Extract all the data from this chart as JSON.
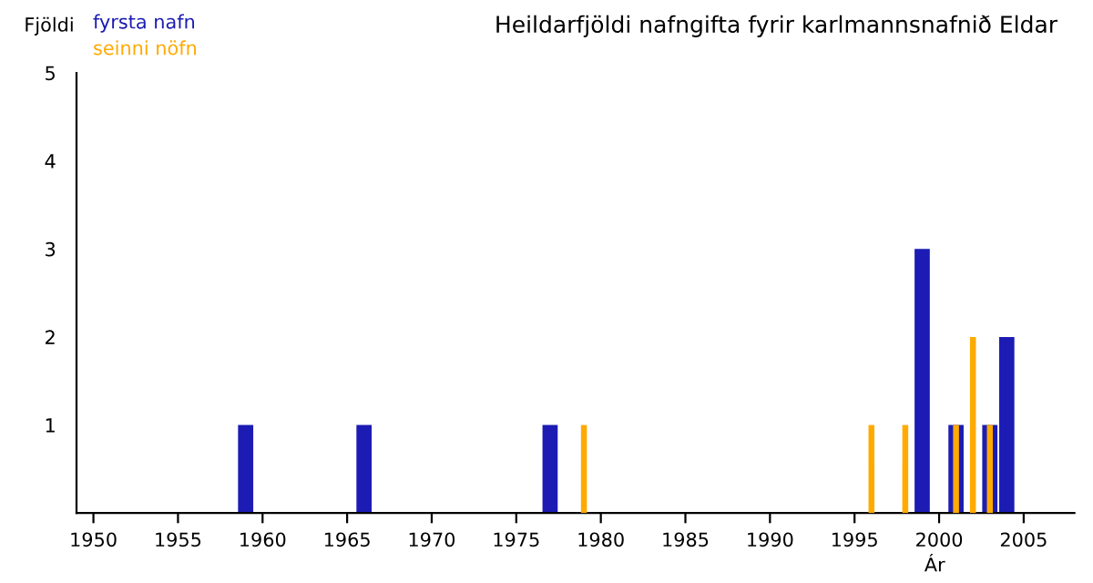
{
  "chart_data": {
    "type": "bar",
    "title": "Heildarfjöldi nafngifta fyrir karlmannsnafnið Eldar",
    "xlabel": "Ár",
    "ylabel": "Fjöldi",
    "series": [
      {
        "name": "fyrsta nafn",
        "color": "#1c1cb4",
        "x": [
          1959,
          1966,
          1977,
          1999,
          2001,
          2003,
          2004
        ],
        "values": [
          1,
          1,
          1,
          3,
          1,
          1,
          2
        ]
      },
      {
        "name": "seinni nöfn",
        "color": "#ffaa00",
        "x": [
          1979,
          1996,
          1998,
          2001,
          2002,
          2003
        ],
        "values": [
          1,
          1,
          1,
          1,
          2,
          1
        ]
      }
    ],
    "xlim": [
      1949,
      2008
    ],
    "xticks": [
      1950,
      1955,
      1960,
      1965,
      1970,
      1975,
      1980,
      1985,
      1990,
      1995,
      2000,
      2005
    ],
    "ylim": [
      0,
      5
    ],
    "yticks": [
      1,
      2,
      3,
      4,
      5
    ],
    "grid": false,
    "legend": "top left"
  }
}
